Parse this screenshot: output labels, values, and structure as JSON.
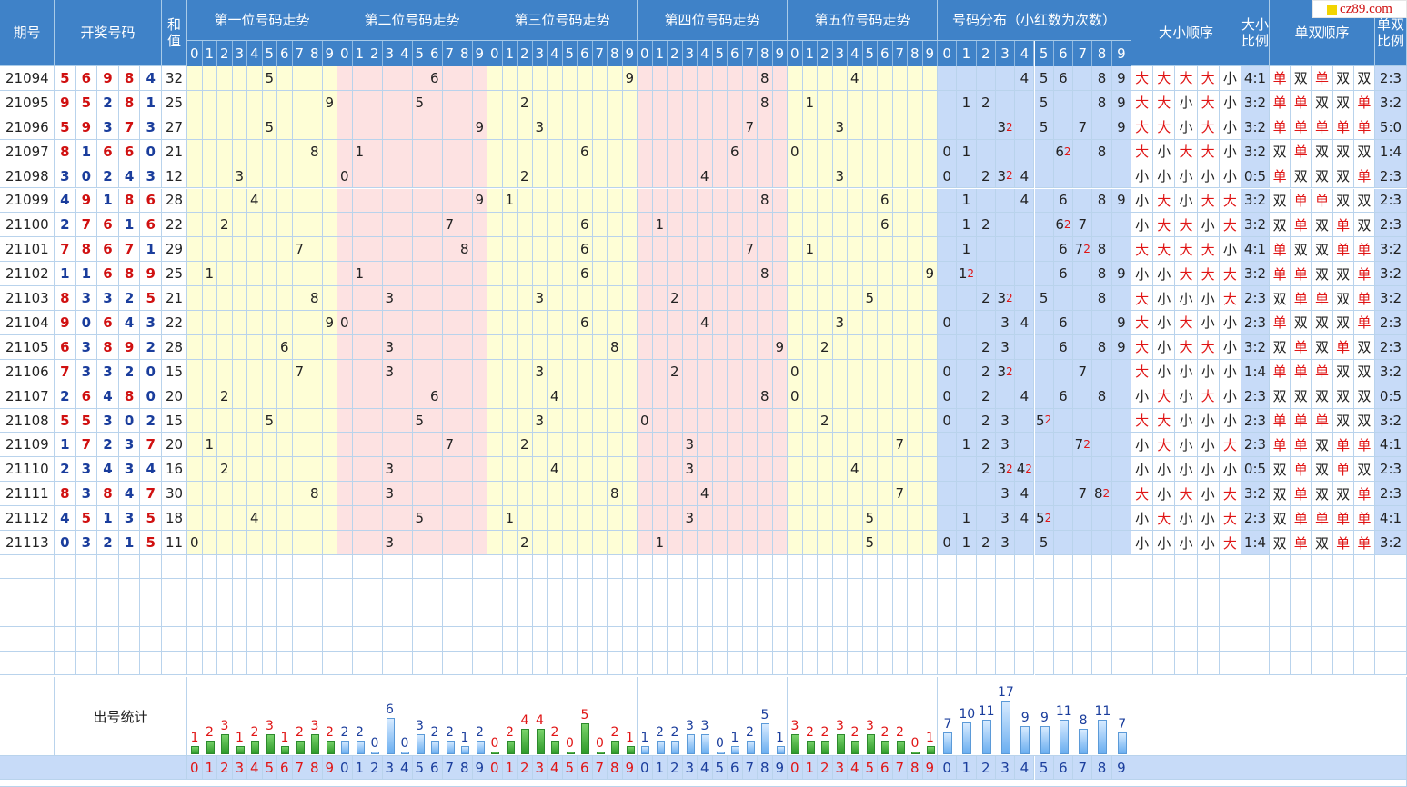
{
  "headers": {
    "issue": "期号",
    "draw": "开奖号码",
    "sum": "和值",
    "pos": [
      "第一位号码走势",
      "第二位号码走势",
      "第三位号码走势",
      "第四位号码走势",
      "第五位号码走势"
    ],
    "dist": "号码分布（小红数为次数）",
    "bs_order": "大小顺序",
    "bs_ratio": "大小比例",
    "oe_order": "单双顺序",
    "oe_ratio": "单双比例"
  },
  "digits": [
    "0",
    "1",
    "2",
    "3",
    "4",
    "5",
    "6",
    "7",
    "8",
    "9"
  ],
  "logo": "cz89.com",
  "stats_label": "出号统计",
  "rows": [
    {
      "issue": "21094",
      "nums": [
        5,
        6,
        9,
        8,
        4
      ],
      "sum": "32",
      "dist": {
        "4": 1,
        "5": 1,
        "6": 1,
        "8": 1,
        "9": 1
      },
      "bs": [
        "大",
        "大",
        "大",
        "大",
        "小"
      ],
      "bsr": "4:1",
      "oe": [
        "单",
        "双",
        "单",
        "双",
        "双"
      ],
      "oer": "2:3"
    },
    {
      "issue": "21095",
      "nums": [
        9,
        5,
        2,
        8,
        1
      ],
      "sum": "25",
      "dist": {
        "1": 1,
        "2": 1,
        "5": 1,
        "8": 1,
        "9": 1
      },
      "bs": [
        "大",
        "大",
        "小",
        "大",
        "小"
      ],
      "bsr": "3:2",
      "oe": [
        "单",
        "单",
        "双",
        "双",
        "单"
      ],
      "oer": "3:2"
    },
    {
      "issue": "21096",
      "nums": [
        5,
        9,
        3,
        7,
        3
      ],
      "sum": "27",
      "dist": {
        "3": 2,
        "5": 1,
        "7": 1,
        "9": 1
      },
      "bs": [
        "大",
        "大",
        "小",
        "大",
        "小"
      ],
      "bsr": "3:2",
      "oe": [
        "单",
        "单",
        "单",
        "单",
        "单"
      ],
      "oer": "5:0"
    },
    {
      "issue": "21097",
      "nums": [
        8,
        1,
        6,
        6,
        0
      ],
      "sum": "21",
      "dist": {
        "0": 1,
        "1": 1,
        "6": 2,
        "8": 1
      },
      "bs": [
        "大",
        "小",
        "大",
        "大",
        "小"
      ],
      "bsr": "3:2",
      "oe": [
        "双",
        "单",
        "双",
        "双",
        "双"
      ],
      "oer": "1:4"
    },
    {
      "issue": "21098",
      "nums": [
        3,
        0,
        2,
        4,
        3
      ],
      "sum": "12",
      "dist": {
        "0": 1,
        "2": 1,
        "3": 2,
        "4": 1
      },
      "bs": [
        "小",
        "小",
        "小",
        "小",
        "小"
      ],
      "bsr": "0:5",
      "oe": [
        "单",
        "双",
        "双",
        "双",
        "单"
      ],
      "oer": "2:3"
    },
    {
      "issue": "21099",
      "nums": [
        4,
        9,
        1,
        8,
        6
      ],
      "sum": "28",
      "dist": {
        "1": 1,
        "4": 1,
        "6": 1,
        "8": 1,
        "9": 1
      },
      "bs": [
        "小",
        "大",
        "小",
        "大",
        "大"
      ],
      "bsr": "3:2",
      "oe": [
        "双",
        "单",
        "单",
        "双",
        "双"
      ],
      "oer": "2:3"
    },
    {
      "issue": "21100",
      "nums": [
        2,
        7,
        6,
        1,
        6
      ],
      "sum": "22",
      "dist": {
        "1": 1,
        "2": 1,
        "6": 2,
        "7": 1
      },
      "bs": [
        "小",
        "大",
        "大",
        "小",
        "大"
      ],
      "bsr": "3:2",
      "oe": [
        "双",
        "单",
        "双",
        "单",
        "双"
      ],
      "oer": "2:3"
    },
    {
      "issue": "21101",
      "nums": [
        7,
        8,
        6,
        7,
        1
      ],
      "sum": "29",
      "dist": {
        "1": 1,
        "6": 1,
        "7": 2,
        "8": 1
      },
      "bs": [
        "大",
        "大",
        "大",
        "大",
        "小"
      ],
      "bsr": "4:1",
      "oe": [
        "单",
        "双",
        "双",
        "单",
        "单"
      ],
      "oer": "3:2"
    },
    {
      "issue": "21102",
      "nums": [
        1,
        1,
        6,
        8,
        9
      ],
      "sum": "25",
      "dist": {
        "1": 2,
        "6": 1,
        "8": 1,
        "9": 1
      },
      "bs": [
        "小",
        "小",
        "大",
        "大",
        "大"
      ],
      "bsr": "3:2",
      "oe": [
        "单",
        "单",
        "双",
        "双",
        "单"
      ],
      "oer": "3:2"
    },
    {
      "issue": "21103",
      "nums": [
        8,
        3,
        3,
        2,
        5
      ],
      "sum": "21",
      "dist": {
        "2": 1,
        "3": 2,
        "5": 1,
        "8": 1
      },
      "bs": [
        "大",
        "小",
        "小",
        "小",
        "大"
      ],
      "bsr": "2:3",
      "oe": [
        "双",
        "单",
        "单",
        "双",
        "单"
      ],
      "oer": "3:2"
    },
    {
      "issue": "21104",
      "nums": [
        9,
        0,
        6,
        4,
        3
      ],
      "sum": "22",
      "dist": {
        "0": 1,
        "3": 1,
        "4": 1,
        "6": 1,
        "9": 1
      },
      "bs": [
        "大",
        "小",
        "大",
        "小",
        "小"
      ],
      "bsr": "2:3",
      "oe": [
        "单",
        "双",
        "双",
        "双",
        "单"
      ],
      "oer": "2:3"
    },
    {
      "issue": "21105",
      "nums": [
        6,
        3,
        8,
        9,
        2
      ],
      "sum": "28",
      "dist": {
        "2": 1,
        "3": 1,
        "6": 1,
        "8": 1,
        "9": 1
      },
      "bs": [
        "大",
        "小",
        "大",
        "大",
        "小"
      ],
      "bsr": "3:2",
      "oe": [
        "双",
        "单",
        "双",
        "单",
        "双"
      ],
      "oer": "2:3"
    },
    {
      "issue": "21106",
      "nums": [
        7,
        3,
        3,
        2,
        0
      ],
      "sum": "15",
      "dist": {
        "0": 1,
        "2": 1,
        "3": 2,
        "7": 1
      },
      "bs": [
        "大",
        "小",
        "小",
        "小",
        "小"
      ],
      "bsr": "1:4",
      "oe": [
        "单",
        "单",
        "单",
        "双",
        "双"
      ],
      "oer": "3:2"
    },
    {
      "issue": "21107",
      "nums": [
        2,
        6,
        4,
        8,
        0
      ],
      "sum": "20",
      "dist": {
        "0": 1,
        "2": 1,
        "4": 1,
        "6": 1,
        "8": 1
      },
      "bs": [
        "小",
        "大",
        "小",
        "大",
        "小"
      ],
      "bsr": "2:3",
      "oe": [
        "双",
        "双",
        "双",
        "双",
        "双"
      ],
      "oer": "0:5"
    },
    {
      "issue": "21108",
      "nums": [
        5,
        5,
        3,
        0,
        2
      ],
      "sum": "15",
      "dist": {
        "0": 1,
        "2": 1,
        "3": 1,
        "5": 2
      },
      "bs": [
        "大",
        "大",
        "小",
        "小",
        "小"
      ],
      "bsr": "2:3",
      "oe": [
        "单",
        "单",
        "单",
        "双",
        "双"
      ],
      "oer": "3:2"
    },
    {
      "issue": "21109",
      "nums": [
        1,
        7,
        2,
        3,
        7
      ],
      "sum": "20",
      "dist": {
        "1": 1,
        "2": 1,
        "3": 1,
        "7": 2
      },
      "bs": [
        "小",
        "大",
        "小",
        "小",
        "大"
      ],
      "bsr": "2:3",
      "oe": [
        "单",
        "单",
        "双",
        "单",
        "单"
      ],
      "oer": "4:1"
    },
    {
      "issue": "21110",
      "nums": [
        2,
        3,
        4,
        3,
        4
      ],
      "sum": "16",
      "dist": {
        "2": 1,
        "3": 2,
        "4": 2
      },
      "bs": [
        "小",
        "小",
        "小",
        "小",
        "小"
      ],
      "bsr": "0:5",
      "oe": [
        "双",
        "单",
        "双",
        "单",
        "双"
      ],
      "oer": "2:3"
    },
    {
      "issue": "21111",
      "nums": [
        8,
        3,
        8,
        4,
        7
      ],
      "sum": "30",
      "dist": {
        "3": 1,
        "4": 1,
        "7": 1,
        "8": 2
      },
      "bs": [
        "大",
        "小",
        "大",
        "小",
        "大"
      ],
      "bsr": "3:2",
      "oe": [
        "双",
        "单",
        "双",
        "双",
        "单"
      ],
      "oer": "2:3"
    },
    {
      "issue": "21112",
      "nums": [
        4,
        5,
        1,
        3,
        5
      ],
      "sum": "18",
      "dist": {
        "1": 1,
        "3": 1,
        "4": 1,
        "5": 2
      },
      "bs": [
        "小",
        "大",
        "小",
        "小",
        "大"
      ],
      "bsr": "2:3",
      "oe": [
        "双",
        "单",
        "单",
        "单",
        "单"
      ],
      "oer": "4:1"
    },
    {
      "issue": "21113",
      "nums": [
        0,
        3,
        2,
        1,
        5
      ],
      "sum": "11",
      "dist": {
        "0": 1,
        "1": 1,
        "2": 1,
        "3": 1,
        "5": 1
      },
      "bs": [
        "小",
        "小",
        "小",
        "小",
        "大"
      ],
      "bsr": "1:4",
      "oe": [
        "双",
        "单",
        "双",
        "单",
        "单"
      ],
      "oer": "3:2"
    }
  ],
  "stats": {
    "pos": [
      [
        1,
        2,
        3,
        1,
        2,
        3,
        1,
        2,
        3,
        2
      ],
      [
        2,
        2,
        0,
        6,
        0,
        3,
        2,
        2,
        1,
        2
      ],
      [
        0,
        2,
        4,
        4,
        2,
        0,
        5,
        0,
        2,
        1
      ],
      [
        1,
        2,
        2,
        3,
        3,
        0,
        1,
        2,
        5,
        1
      ],
      [
        3,
        2,
        2,
        3,
        2,
        3,
        2,
        2,
        0,
        1
      ]
    ],
    "dist": [
      7,
      10,
      11,
      17,
      9,
      9,
      11,
      8,
      11,
      7
    ]
  },
  "colors": {
    "header": "#3f82c8",
    "odd_zone": "#fefed6",
    "even_zone": "#fde2e2",
    "dist_zone": "#c7dbf8",
    "red": "#e01515",
    "blue": "#1a3d9c"
  }
}
